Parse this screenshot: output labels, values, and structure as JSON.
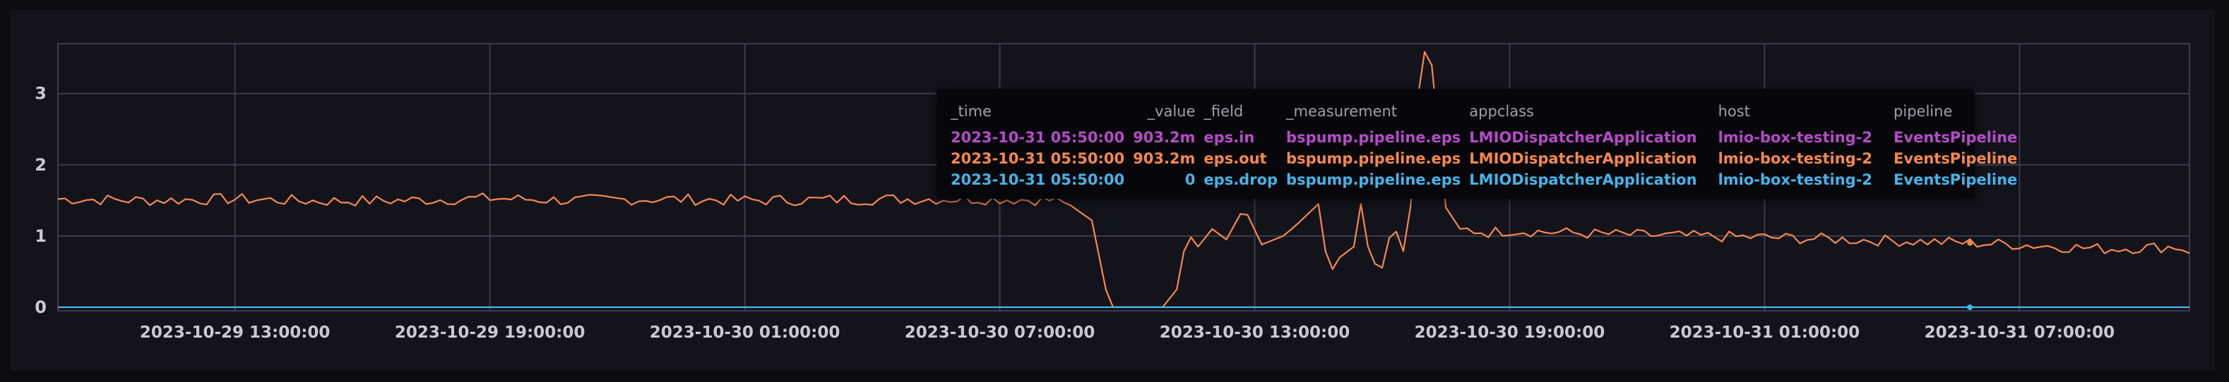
{
  "colors": {
    "eps_in": "#b64bc8",
    "eps_out": "#f5884f",
    "eps_drop": "#46b4e8",
    "grid": "#3b3b4b",
    "axis_text": "#c9c9d4",
    "tooltip_header": "#9e9eae"
  },
  "chart_data": {
    "type": "line",
    "title": "",
    "xlabel": "",
    "ylabel": "",
    "xlim": [
      "2023-10-29 08:50:00",
      "2023-10-31 11:00:00"
    ],
    "ylim": [
      -0.05,
      3.7
    ],
    "grid": true,
    "yticks": [
      "0",
      "1",
      "2",
      "3"
    ],
    "xticks": [
      "2023-10-29 13:00:00",
      "2023-10-29 19:00:00",
      "2023-10-30 01:00:00",
      "2023-10-30 07:00:00",
      "2023-10-30 13:00:00",
      "2023-10-30 19:00:00",
      "2023-10-31 01:00:00",
      "2023-10-31 07:00:00"
    ],
    "series": [
      {
        "name": "eps.out",
        "color": "#f5884f",
        "keypoints": [
          [
            "2023-10-29 08:50",
            1.52
          ],
          [
            "2023-10-29 11:00",
            1.5
          ],
          [
            "2023-10-29 13:00",
            1.52
          ],
          [
            "2023-10-29 15:00",
            1.49
          ],
          [
            "2023-10-29 17:00",
            1.5
          ],
          [
            "2023-10-29 19:00",
            1.53
          ],
          [
            "2023-10-29 21:00",
            1.5
          ],
          [
            "2023-10-29 23:00",
            1.52
          ],
          [
            "2023-10-30 01:00",
            1.5
          ],
          [
            "2023-10-30 03:00",
            1.51
          ],
          [
            "2023-10-30 05:00",
            1.52
          ],
          [
            "2023-10-30 07:00",
            1.52
          ],
          [
            "2023-10-30 08:30",
            1.5
          ],
          [
            "2023-10-30 09:10",
            1.22
          ],
          [
            "2023-10-30 09:35",
            0.0
          ],
          [
            "2023-10-30 10:50",
            0.0
          ],
          [
            "2023-10-30 11:10",
            0.25
          ],
          [
            "2023-10-30 11:25",
            1.05
          ],
          [
            "2023-10-30 11:40",
            0.85
          ],
          [
            "2023-10-30 12:00",
            1.1
          ],
          [
            "2023-10-30 12:20",
            0.95
          ],
          [
            "2023-10-30 12:45",
            1.4
          ],
          [
            "2023-10-30 13:10",
            0.88
          ],
          [
            "2023-10-30 13:40",
            1.0
          ],
          [
            "2023-10-30 13:55",
            1.12
          ],
          [
            "2023-10-30 14:30",
            1.45
          ],
          [
            "2023-10-30 14:45",
            0.45
          ],
          [
            "2023-10-30 15:00",
            0.7
          ],
          [
            "2023-10-30 15:20",
            0.85
          ],
          [
            "2023-10-30 15:30",
            1.45
          ],
          [
            "2023-10-30 15:45",
            0.55
          ],
          [
            "2023-10-30 16:00",
            0.52
          ],
          [
            "2023-10-30 16:15",
            1.2
          ],
          [
            "2023-10-30 16:35",
            0.65
          ],
          [
            "2023-10-30 16:55",
            3.68
          ],
          [
            "2023-10-30 17:10",
            3.4
          ],
          [
            "2023-10-30 17:30",
            1.4
          ],
          [
            "2023-10-30 17:50",
            1.1
          ],
          [
            "2023-10-30 18:30",
            1.05
          ],
          [
            "2023-10-30 19:00",
            1.08
          ],
          [
            "2023-10-30 21:00",
            1.03
          ],
          [
            "2023-10-30 23:00",
            1.0
          ],
          [
            "2023-10-31 01:00",
            0.98
          ],
          [
            "2023-10-31 03:00",
            0.95
          ],
          [
            "2023-10-31 05:00",
            0.92
          ],
          [
            "2023-10-31 05:50",
            0.903
          ],
          [
            "2023-10-31 07:00",
            0.88
          ],
          [
            "2023-10-31 09:00",
            0.82
          ],
          [
            "2023-10-31 10:40",
            0.85
          ],
          [
            "2023-10-31 11:00",
            0.8
          ]
        ]
      },
      {
        "name": "eps.in",
        "color": "#b64bc8",
        "note_hidden": true,
        "keypoints": []
      },
      {
        "name": "eps.drop",
        "color": "#46b4e8",
        "keypoints": [
          [
            "2023-10-29 08:50",
            0
          ],
          [
            "2023-10-31 11:00",
            0
          ]
        ]
      }
    ],
    "hover": {
      "x": "2023-10-31 05:50:00"
    }
  },
  "tooltip": {
    "headers": [
      "_time",
      "_value",
      "_field",
      "_measurement",
      "appclass",
      "host",
      "pipeline"
    ],
    "rows": [
      {
        "time": "2023-10-31 05:50:00",
        "value": "903.2m",
        "field": "eps.in",
        "measurement": "bspump.pipeline.eps",
        "appclass": "LMIODispatcherApplication",
        "host": "lmio-box-testing-2",
        "pipeline": "EventsPipeline",
        "color": "#b64bc8"
      },
      {
        "time": "2023-10-31 05:50:00",
        "value": "903.2m",
        "field": "eps.out",
        "measurement": "bspump.pipeline.eps",
        "appclass": "LMIODispatcherApplication",
        "host": "lmio-box-testing-2",
        "pipeline": "EventsPipeline",
        "color": "#f5884f"
      },
      {
        "time": "2023-10-31 05:50:00",
        "value": "0",
        "field": "eps.drop",
        "measurement": "bspump.pipeline.eps",
        "appclass": "LMIODispatcherApplication",
        "host": "lmio-box-testing-2",
        "pipeline": "EventsPipeline",
        "color": "#46b4e8"
      }
    ]
  }
}
